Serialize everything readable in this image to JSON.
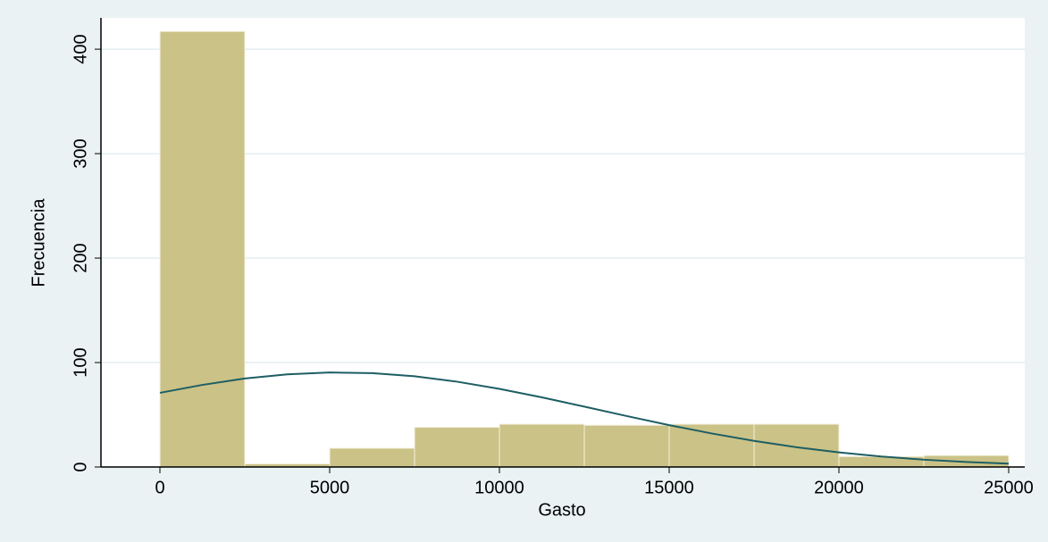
{
  "chart_data": {
    "type": "histogram",
    "x_label": "Gasto",
    "y_label": "Frecuencia",
    "bins": [
      0,
      2500,
      5000,
      7500,
      10000,
      12500,
      15000,
      17500,
      20000,
      22500,
      25000
    ],
    "values": [
      417,
      3,
      18,
      38,
      41,
      40,
      41,
      41,
      10,
      11
    ],
    "color": "#cbc287",
    "curve": {
      "color": "#1d5e63",
      "x": [
        0,
        1250,
        2500,
        3750,
        5000,
        6250,
        7500,
        8750,
        10000,
        11250,
        12500,
        13750,
        15000,
        16250,
        17500,
        18750,
        20000,
        21250,
        22500,
        23750,
        25000
      ],
      "values": [
        71.0,
        78.6,
        84.7,
        88.7,
        90.5,
        89.9,
        86.9,
        81.7,
        74.8,
        66.7,
        57.8,
        48.8,
        40.1,
        32.1,
        25.0,
        18.9,
        14.0,
        10.0,
        7.0,
        4.8,
        3.2
      ]
    },
    "xlim": [
      -1737,
      25474
    ],
    "ylim": [
      0,
      430
    ],
    "xticks": [
      0,
      5000,
      10000,
      15000,
      20000,
      25000
    ],
    "yticks": [
      0,
      100,
      200,
      300,
      400
    ],
    "grid": true
  }
}
